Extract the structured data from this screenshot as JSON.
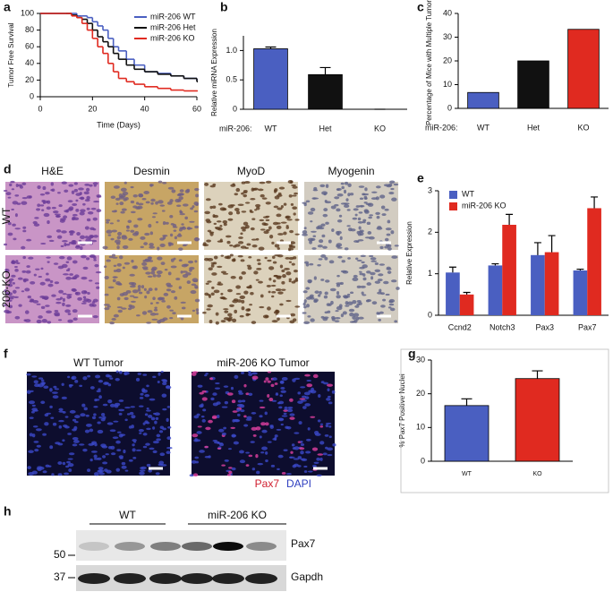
{
  "chart_data": [
    {
      "panel": "a",
      "type": "line",
      "step": true,
      "y_label": "Tumor Free Survival",
      "x_label": "Time (Days)",
      "x": [
        0,
        10,
        12,
        14,
        16,
        18,
        20,
        22,
        24,
        26,
        28,
        30,
        33,
        36,
        40,
        45,
        50,
        55,
        60
      ],
      "xlim": [
        0,
        60
      ],
      "xticks": [
        0,
        20,
        40,
        60
      ],
      "ylim": [
        0,
        100
      ],
      "yticks": [
        0,
        20,
        40,
        60,
        80,
        100
      ],
      "legend": "top-right",
      "series": [
        {
          "name": "miR-206 WT",
          "color": "#4a5fc1",
          "values": [
            100,
            100,
            100,
            97,
            97,
            95,
            90,
            85,
            80,
            70,
            60,
            55,
            45,
            38,
            30,
            28,
            25,
            22,
            20
          ]
        },
        {
          "name": "miR-206 Het",
          "color": "#111111",
          "values": [
            100,
            100,
            98,
            95,
            93,
            88,
            80,
            72,
            66,
            60,
            52,
            45,
            38,
            33,
            30,
            27,
            25,
            22,
            18
          ]
        },
        {
          "name": "miR-206 KO",
          "color": "#e02a20",
          "values": [
            100,
            100,
            97,
            95,
            88,
            80,
            70,
            60,
            52,
            40,
            30,
            22,
            18,
            15,
            12,
            10,
            8,
            7,
            7
          ]
        }
      ]
    },
    {
      "panel": "b",
      "type": "bar",
      "y_label": "Relative miRNA Expression",
      "category_prefix": "miR-206:",
      "categories": [
        "WT",
        "Het",
        "KO"
      ],
      "values": [
        1.03,
        0.59,
        0
      ],
      "errors": [
        0.03,
        0.12,
        0
      ],
      "colors": [
        "#4a5fc1",
        "#111111",
        "#e02a20"
      ],
      "ylim": [
        0,
        1.25
      ],
      "yticks": [
        0,
        0.5,
        {
          "value": 1,
          "label": "1.0"
        }
      ]
    },
    {
      "panel": "c",
      "type": "bar",
      "y_label": "Percentage of Mice with Multiple Tumors",
      "category_prefix": "miR-206:",
      "categories": [
        "WT",
        "Het",
        "KO"
      ],
      "values": [
        6.7,
        20,
        33.3
      ],
      "colors": [
        "#4a5fc1",
        "#111111",
        "#e02a20"
      ],
      "ylim": [
        0,
        40
      ],
      "yticks": [
        0,
        10,
        20,
        30,
        40
      ]
    },
    {
      "panel": "e",
      "type": "grouped_bar",
      "y_label": "Relative Expression",
      "legend": "top-left",
      "categories": [
        "Ccnd2",
        "Notch3",
        "Pax3",
        "Pax7"
      ],
      "series": [
        {
          "name": "WT",
          "color": "#4a5fc1",
          "values": [
            1.03,
            1.2,
            1.45,
            1.08
          ],
          "errors": [
            0.13,
            0.04,
            0.3,
            0.03
          ]
        },
        {
          "name": "miR-206 KO",
          "color": "#e02a20",
          "values": [
            0.5,
            2.18,
            1.52,
            2.58
          ],
          "errors": [
            0.05,
            0.25,
            0.4,
            0.27
          ]
        }
      ],
      "ylim": [
        0,
        3
      ],
      "yticks": [
        0,
        1,
        2,
        3
      ]
    },
    {
      "panel": "g",
      "type": "bar",
      "y_label": "% Pax7 Positive Nuclei",
      "categories": [
        "WT",
        "KO"
      ],
      "values": [
        16.5,
        24.5
      ],
      "errors": [
        2,
        2.3
      ],
      "colors": [
        "#4a5fc1",
        "#e02a20"
      ],
      "ylim": [
        0,
        30
      ],
      "yticks": [
        0,
        10,
        20,
        30
      ]
    }
  ],
  "panel_d": {
    "panel": "d",
    "columns": [
      "H&E",
      "Desmin",
      "MyoD",
      "Myogenin"
    ],
    "rows": [
      "WT",
      "206-KO"
    ]
  },
  "panel_f": {
    "panel": "f",
    "titles": [
      "WT Tumor",
      "miR-206 KO Tumor"
    ],
    "stains": [
      "Pax7",
      "DAPI"
    ]
  },
  "panel_h": {
    "panel": "h",
    "groups": [
      "WT",
      "miR-206 KO"
    ],
    "markers": [
      "50",
      "37"
    ],
    "proteins": [
      "Pax7",
      "Gapdh"
    ]
  }
}
